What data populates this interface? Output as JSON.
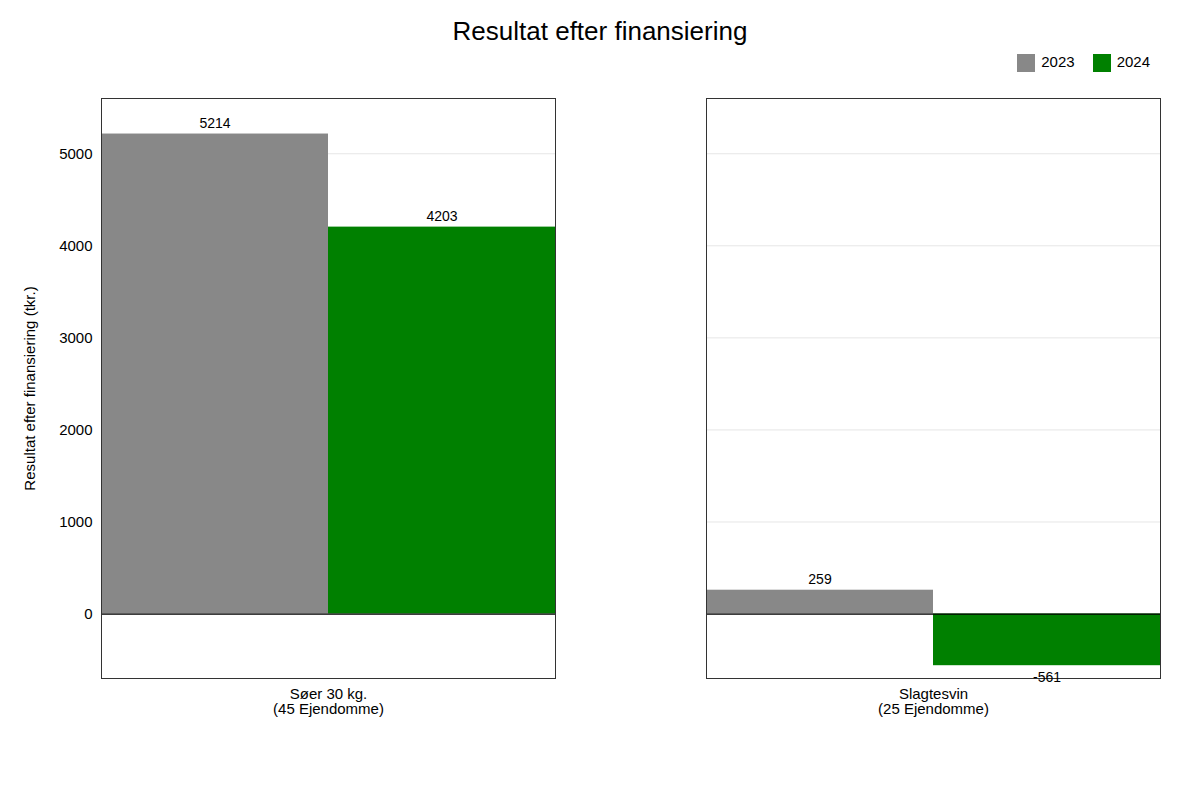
{
  "chart_data": {
    "type": "bar",
    "title": "Resultat efter finansiering",
    "ylabel": "Resultat efter finansiering (tkr.)",
    "categories": [
      "Søer 30 kg.\n(45 Ejendomme)",
      "Slagtesvin\n(25 Ejendomme)"
    ],
    "series": [
      {
        "name": "2023",
        "color": "#888888",
        "values": [
          5214,
          259
        ]
      },
      {
        "name": "2024",
        "color": "#008000",
        "values": [
          4203,
          -561
        ]
      }
    ],
    "ylim": [
      -700,
      5600
    ],
    "yticks": [
      0,
      1000,
      2000,
      3000,
      4000,
      5000
    ],
    "grid": true,
    "legend": "upper right",
    "data_labels": true
  }
}
